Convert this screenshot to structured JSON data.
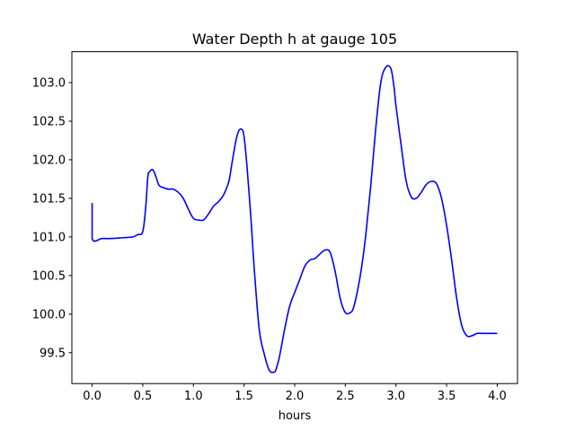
{
  "chart_data": {
    "type": "line",
    "title": "Water Depth h at gauge 105",
    "xlabel": "hours",
    "ylabel": "",
    "xlim": [
      -0.2,
      4.2
    ],
    "ylim": [
      99.1,
      103.4
    ],
    "xticks": [
      0.0,
      0.5,
      1.0,
      1.5,
      2.0,
      2.5,
      3.0,
      3.5,
      4.0
    ],
    "xtick_labels": [
      "0.0",
      "0.5",
      "1.0",
      "1.5",
      "2.0",
      "2.5",
      "3.0",
      "3.5",
      "4.0"
    ],
    "yticks": [
      99.5,
      100.0,
      100.5,
      101.0,
      101.5,
      102.0,
      102.5,
      103.0
    ],
    "ytick_labels": [
      "99.5",
      "100.0",
      "100.5",
      "101.0",
      "101.5",
      "102.0",
      "102.5",
      "103.0"
    ],
    "grid": false,
    "series": [
      {
        "color": "#0000ff",
        "x": [
          0.0,
          0.0,
          0.1,
          0.2,
          0.3,
          0.4,
          0.45,
          0.5,
          0.53,
          0.55,
          0.57,
          0.6,
          0.63,
          0.66,
          0.7,
          0.75,
          0.8,
          0.85,
          0.9,
          0.95,
          1.0,
          1.05,
          1.1,
          1.15,
          1.2,
          1.25,
          1.3,
          1.35,
          1.38,
          1.42,
          1.45,
          1.48,
          1.5,
          1.53,
          1.57,
          1.6,
          1.65,
          1.7,
          1.75,
          1.8,
          1.82,
          1.85,
          1.9,
          1.95,
          2.0,
          2.05,
          2.1,
          2.15,
          2.2,
          2.25,
          2.3,
          2.35,
          2.4,
          2.45,
          2.5,
          2.55,
          2.58,
          2.62,
          2.66,
          2.7,
          2.75,
          2.8,
          2.85,
          2.9,
          2.95,
          2.98,
          3.0,
          3.05,
          3.1,
          3.15,
          3.2,
          3.25,
          3.3,
          3.35,
          3.4,
          3.45,
          3.5,
          3.55,
          3.6,
          3.65,
          3.7,
          3.75,
          3.8,
          3.85,
          3.9,
          4.0
        ],
        "y": [
          101.44,
          100.98,
          100.98,
          100.98,
          100.99,
          101.0,
          101.03,
          101.07,
          101.4,
          101.78,
          101.85,
          101.87,
          101.78,
          101.67,
          101.64,
          101.62,
          101.62,
          101.58,
          101.5,
          101.36,
          101.24,
          101.22,
          101.22,
          101.3,
          101.4,
          101.46,
          101.55,
          101.72,
          101.95,
          102.25,
          102.38,
          102.39,
          102.3,
          101.9,
          101.2,
          100.6,
          99.8,
          99.48,
          99.27,
          99.25,
          99.3,
          99.45,
          99.8,
          100.1,
          100.28,
          100.45,
          100.62,
          100.7,
          100.72,
          100.78,
          100.83,
          100.8,
          100.55,
          100.2,
          100.02,
          100.02,
          100.08,
          100.3,
          100.6,
          101.0,
          101.65,
          102.4,
          103.0,
          103.2,
          103.18,
          102.95,
          102.7,
          102.2,
          101.73,
          101.52,
          101.5,
          101.58,
          101.68,
          101.72,
          101.69,
          101.5,
          101.15,
          100.7,
          100.2,
          99.85,
          99.72,
          99.72,
          99.75,
          99.75,
          99.75,
          99.75
        ]
      }
    ]
  }
}
